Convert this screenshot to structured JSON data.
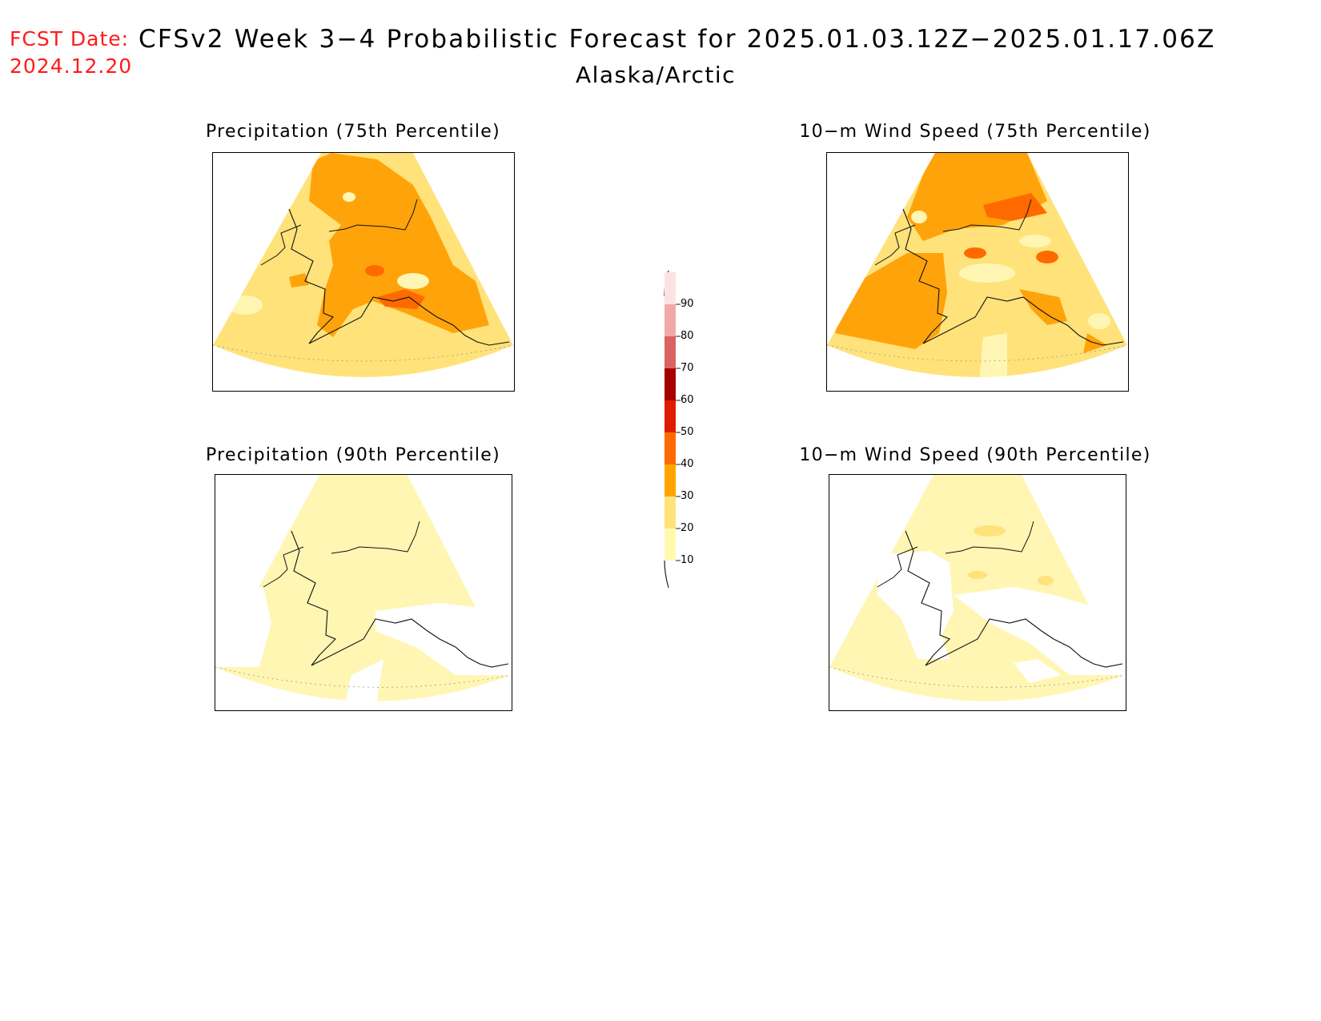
{
  "header": {
    "fcst_label": "FCST Date:",
    "fcst_date": "2024.12.20",
    "title": "CFSv2 Week 3−4 Probabilistic Forecast for 2025.01.03.12Z−2025.01.17.06Z",
    "subtitle": "Alaska/Arctic"
  },
  "panels": [
    {
      "title": "Precipitation (75th Percentile)",
      "level": "high",
      "icon": "precip-75-map"
    },
    {
      "title": "10−m Wind Speed (75th Percentile)",
      "level": "high",
      "icon": "wind-75-map"
    },
    {
      "title": "Precipitation (90th Percentile)",
      "level": "low",
      "icon": "precip-90-map"
    },
    {
      "title": "10−m Wind Speed (90th Percentile)",
      "level": "low",
      "icon": "wind-90-map"
    }
  ],
  "legend": {
    "levels": [
      "10",
      "20",
      "30",
      "40",
      "50",
      "60",
      "70",
      "80",
      "90"
    ],
    "colors": [
      "#fffab0",
      "#ffe27a",
      "#ffa400",
      "#ff6a00",
      "#e01c00",
      "#a50000",
      "#db6262",
      "#f3a8a8",
      "#fde2e2"
    ]
  },
  "colors": {
    "fill_10": "#fff6b3",
    "fill_20": "#ffe27a",
    "fill_30": "#ffa30a",
    "fill_40": "#ff6a00",
    "fcst_text": "#ff1a1a"
  }
}
